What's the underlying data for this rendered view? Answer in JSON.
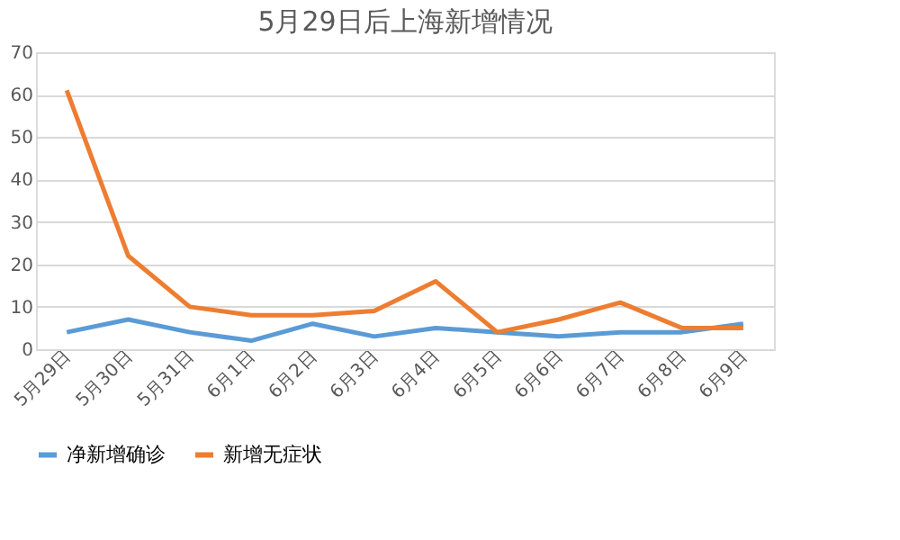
{
  "chart_data": {
    "type": "line",
    "title": "5月29日后上海新增情况",
    "categories": [
      "5月29日",
      "5月30日",
      "5月31日",
      "6月1日",
      "6月2日",
      "6月3日",
      "6月4日",
      "6月5日",
      "6月6日",
      "6月7日",
      "6月8日",
      "6月9日"
    ],
    "series": [
      {
        "name": "净新增确诊",
        "color": "#5b9bd5",
        "values": [
          4,
          7,
          4,
          2,
          6,
          3,
          5,
          4,
          3,
          4,
          4,
          6
        ]
      },
      {
        "name": "新增无症状",
        "color": "#ed7d31",
        "values": [
          61,
          22,
          10,
          8,
          8,
          9,
          16,
          4,
          7,
          11,
          5,
          5
        ]
      }
    ],
    "ylim": [
      0,
      70
    ],
    "yticks": [
      0,
      10,
      20,
      30,
      40,
      50,
      60,
      70
    ],
    "grid": "y",
    "legend": "bottom",
    "marker": "none",
    "line_style": "solid"
  }
}
